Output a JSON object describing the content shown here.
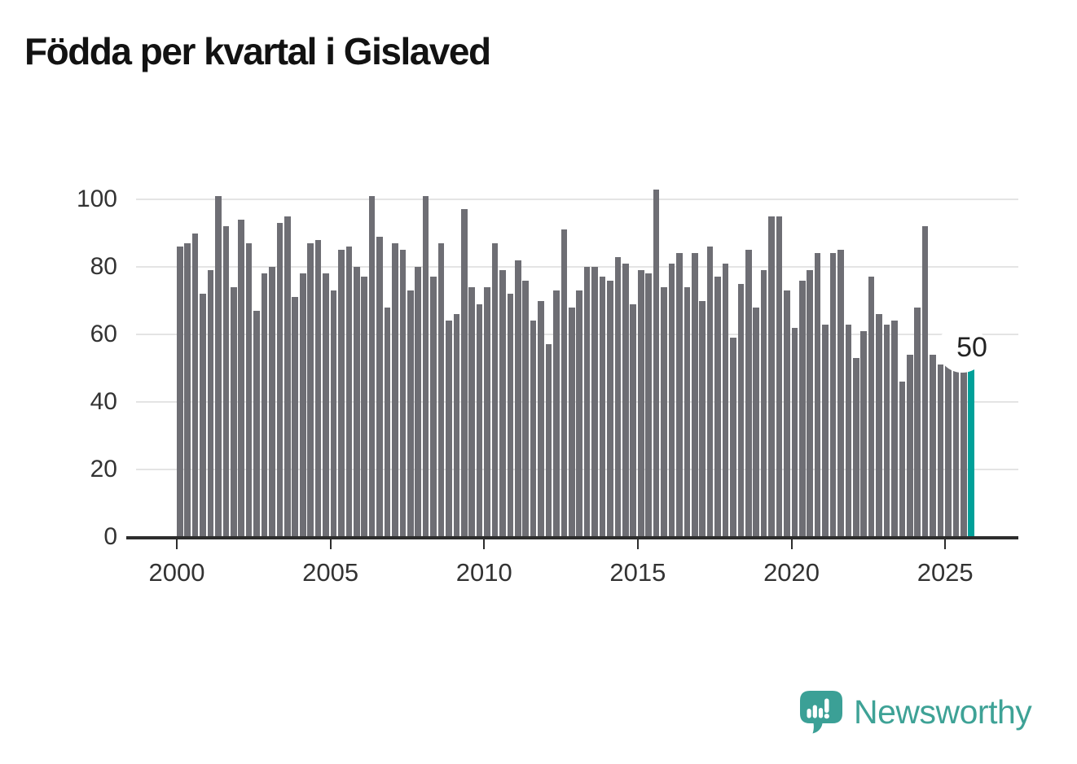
{
  "title": "Födda per kvartal i Gislaved",
  "annotation": {
    "label": "50"
  },
  "logo": {
    "text": "Newsworthy",
    "text_color": "#3EA296",
    "mark_color": "#3BA096"
  },
  "chart_data": {
    "type": "bar",
    "title": "Födda per kvartal i Gislaved",
    "frequency": "quarterly",
    "start_period": "2000-Q1",
    "end_period": "2025-Q4",
    "values": [
      86,
      87,
      90,
      72,
      79,
      101,
      92,
      74,
      94,
      87,
      67,
      78,
      80,
      93,
      95,
      71,
      78,
      87,
      88,
      78,
      73,
      85,
      86,
      80,
      77,
      101,
      89,
      68,
      87,
      85,
      73,
      80,
      101,
      77,
      87,
      64,
      66,
      97,
      74,
      69,
      74,
      87,
      79,
      72,
      82,
      76,
      64,
      70,
      57,
      73,
      91,
      68,
      73,
      80,
      80,
      77,
      76,
      83,
      81,
      69,
      79,
      78,
      103,
      74,
      81,
      84,
      74,
      84,
      70,
      86,
      77,
      81,
      59,
      75,
      85,
      68,
      79,
      95,
      95,
      73,
      62,
      76,
      79,
      84,
      63,
      84,
      85,
      63,
      53,
      61,
      77,
      66,
      63,
      64,
      46,
      54,
      68,
      92,
      54,
      51,
      53,
      54,
      54,
      50
    ],
    "highlight_last_value": 50,
    "annotation_label": "50",
    "x_tick_labels": [
      "2000",
      "2005",
      "2010",
      "2015",
      "2020",
      "2025"
    ],
    "y_ticks": [
      0,
      20,
      40,
      60,
      80,
      100
    ],
    "ylim": [
      0,
      105
    ],
    "grid": "horizontal",
    "legend": "none",
    "colors": {
      "bar": "#6E6E74",
      "highlight": "#00A099",
      "axis": "#2D2D2D",
      "grid": "#E4E4E4",
      "tick_text": "#333333"
    }
  }
}
